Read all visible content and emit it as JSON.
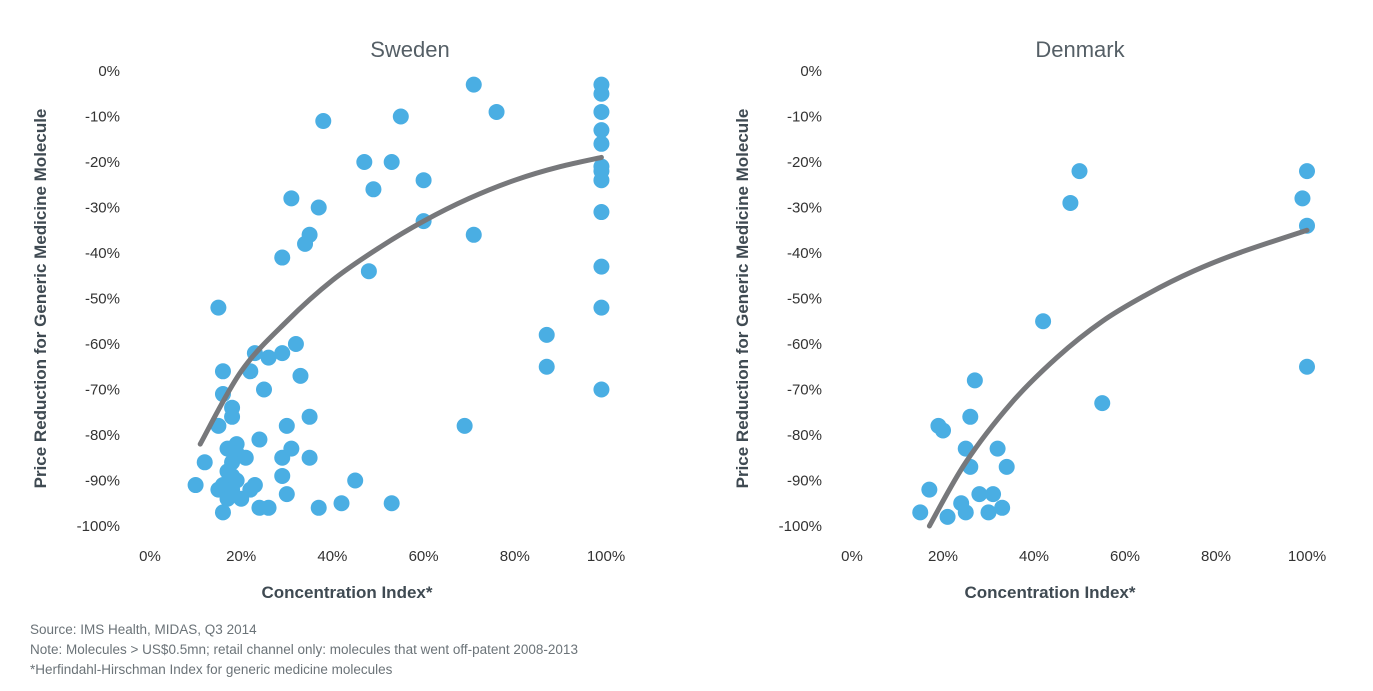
{
  "footnotes": {
    "source": "Source: IMS Health, MIDAS, Q3 2014",
    "note": "Note: Molecules > US$0.5mn; retail channel only: molecules that went off-patent 2008-2013",
    "definition": "*Herfindahl-Hirschman Index for generic medicine molecules"
  },
  "colors": {
    "points": "#4aaee3",
    "trend": "#77787b",
    "background": "#ffffff"
  },
  "chart_data": [
    {
      "type": "scatter",
      "title": "Sweden",
      "xlabel": "Concentration Index*",
      "ylabel": "Price Reduction for Generic Medicine Molecule",
      "xlim": [
        0,
        100
      ],
      "ylim": [
        -100,
        0
      ],
      "x_ticks": [
        "0%",
        "20%",
        "40%",
        "60%",
        "80%",
        "100%"
      ],
      "y_ticks": [
        "0%",
        "-10%",
        "-20%",
        "-30%",
        "-40%",
        "-50%",
        "-60%",
        "-70%",
        "-80%",
        "-90%",
        "-100%"
      ],
      "grid": false,
      "trendline": "logarithmic",
      "trend_points": [
        [
          11,
          -82
        ],
        [
          20,
          -66
        ],
        [
          30,
          -55
        ],
        [
          40,
          -46
        ],
        [
          50,
          -39
        ],
        [
          60,
          -33
        ],
        [
          70,
          -28
        ],
        [
          80,
          -24
        ],
        [
          90,
          -21
        ],
        [
          99,
          -19
        ]
      ],
      "points": [
        [
          71,
          -3
        ],
        [
          76,
          -9
        ],
        [
          38,
          -11
        ],
        [
          55,
          -10
        ],
        [
          99,
          -3
        ],
        [
          99,
          -5
        ],
        [
          99,
          -9
        ],
        [
          99,
          -13
        ],
        [
          99,
          -16
        ],
        [
          99,
          -21
        ],
        [
          99,
          -22
        ],
        [
          99,
          -24
        ],
        [
          47,
          -20
        ],
        [
          53,
          -20
        ],
        [
          49,
          -26
        ],
        [
          60,
          -24
        ],
        [
          31,
          -28
        ],
        [
          37,
          -30
        ],
        [
          99,
          -31
        ],
        [
          60,
          -33
        ],
        [
          35,
          -36
        ],
        [
          71,
          -36
        ],
        [
          34,
          -38
        ],
        [
          29,
          -41
        ],
        [
          48,
          -44
        ],
        [
          99,
          -43
        ],
        [
          15,
          -52
        ],
        [
          99,
          -52
        ],
        [
          87,
          -58
        ],
        [
          87,
          -65
        ],
        [
          32,
          -60
        ],
        [
          29,
          -62
        ],
        [
          23,
          -62
        ],
        [
          26,
          -63
        ],
        [
          16,
          -66
        ],
        [
          22,
          -66
        ],
        [
          33,
          -67
        ],
        [
          99,
          -70
        ],
        [
          16,
          -71
        ],
        [
          25,
          -70
        ],
        [
          18,
          -74
        ],
        [
          18,
          -76
        ],
        [
          35,
          -76
        ],
        [
          69,
          -78
        ],
        [
          15,
          -78
        ],
        [
          30,
          -78
        ],
        [
          24,
          -81
        ],
        [
          19,
          -82
        ],
        [
          17,
          -83
        ],
        [
          19,
          -84
        ],
        [
          21,
          -85
        ],
        [
          31,
          -83
        ],
        [
          29,
          -85
        ],
        [
          35,
          -85
        ],
        [
          12,
          -86
        ],
        [
          18,
          -86
        ],
        [
          17,
          -88
        ],
        [
          18,
          -89
        ],
        [
          19,
          -90
        ],
        [
          29,
          -89
        ],
        [
          45,
          -90
        ],
        [
          10,
          -91
        ],
        [
          15,
          -92
        ],
        [
          16,
          -91
        ],
        [
          17,
          -93
        ],
        [
          18,
          -92
        ],
        [
          22,
          -92
        ],
        [
          23,
          -91
        ],
        [
          30,
          -93
        ],
        [
          17,
          -94
        ],
        [
          20,
          -94
        ],
        [
          42,
          -95
        ],
        [
          53,
          -95
        ],
        [
          24,
          -96
        ],
        [
          26,
          -96
        ],
        [
          37,
          -96
        ],
        [
          16,
          -97
        ]
      ]
    },
    {
      "type": "scatter",
      "title": "Denmark",
      "xlabel": "Concentration Index*",
      "ylabel": "Price Reduction for Generic Medicine Molecule",
      "xlim": [
        0,
        100
      ],
      "ylim": [
        -100,
        0
      ],
      "x_ticks": [
        "0%",
        "20%",
        "40%",
        "60%",
        "80%",
        "100%"
      ],
      "y_ticks": [
        "0%",
        "-10%",
        "-20%",
        "-30%",
        "-40%",
        "-50%",
        "-60%",
        "-70%",
        "-80%",
        "-90%",
        "-100%"
      ],
      "grid": false,
      "trendline": "logarithmic",
      "trend_points": [
        [
          17,
          -100
        ],
        [
          25,
          -86
        ],
        [
          35,
          -73
        ],
        [
          45,
          -63
        ],
        [
          55,
          -55
        ],
        [
          65,
          -49
        ],
        [
          75,
          -44
        ],
        [
          85,
          -40
        ],
        [
          100,
          -35
        ]
      ],
      "points": [
        [
          50,
          -22
        ],
        [
          100,
          -22
        ],
        [
          48,
          -29
        ],
        [
          99,
          -28
        ],
        [
          100,
          -34
        ],
        [
          42,
          -55
        ],
        [
          100,
          -65
        ],
        [
          27,
          -68
        ],
        [
          55,
          -73
        ],
        [
          26,
          -76
        ],
        [
          19,
          -78
        ],
        [
          20,
          -79
        ],
        [
          25,
          -83
        ],
        [
          32,
          -83
        ],
        [
          26,
          -87
        ],
        [
          34,
          -87
        ],
        [
          17,
          -92
        ],
        [
          28,
          -93
        ],
        [
          31,
          -93
        ],
        [
          24,
          -95
        ],
        [
          15,
          -97
        ],
        [
          21,
          -98
        ],
        [
          25,
          -97
        ],
        [
          30,
          -97
        ],
        [
          33,
          -96
        ]
      ]
    }
  ]
}
